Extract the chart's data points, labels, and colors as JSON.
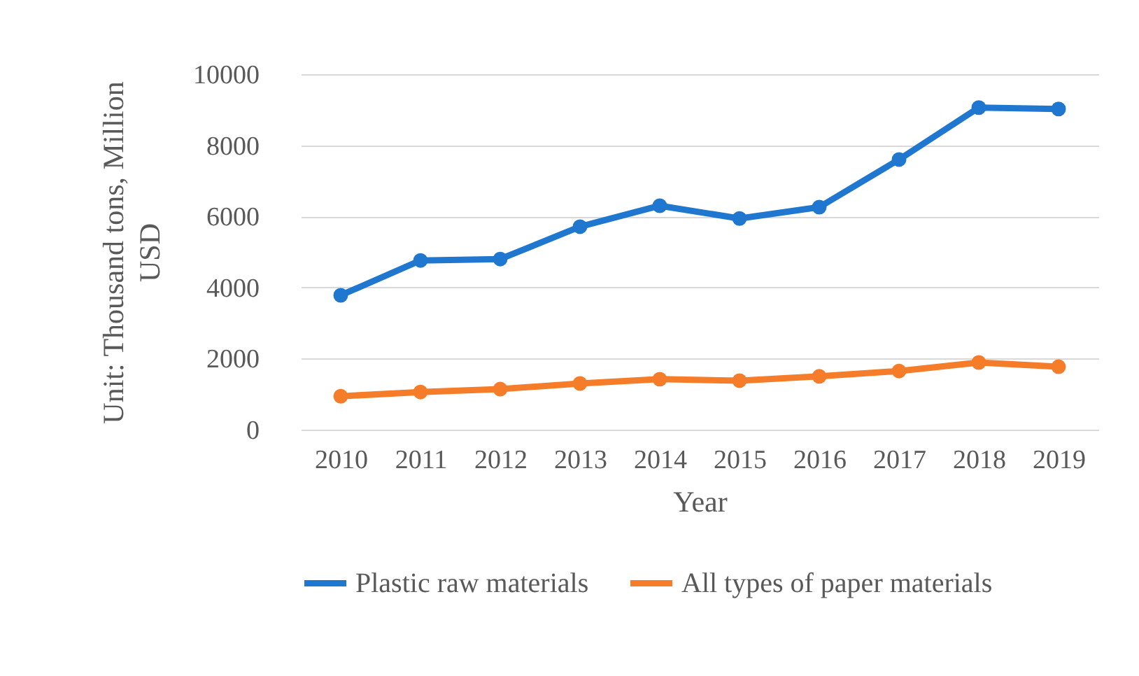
{
  "chart_data": {
    "type": "line",
    "xlabel": "Year",
    "ylabel": "Unit: Thousand tons, Million USD",
    "categories": [
      "2010",
      "2011",
      "2012",
      "2013",
      "2014",
      "2015",
      "2016",
      "2017",
      "2018",
      "2019"
    ],
    "series": [
      {
        "name": "Plastic raw materials",
        "color": "#1f77d0",
        "values": [
          3780,
          4760,
          4800,
          5710,
          6300,
          5940,
          6260,
          7600,
          9060,
          9020
        ]
      },
      {
        "name": "All types of paper materials",
        "color": "#f57d2a",
        "values": [
          940,
          1060,
          1140,
          1300,
          1420,
          1380,
          1500,
          1650,
          1890,
          1770
        ]
      }
    ],
    "ylim": [
      0,
      10000
    ],
    "yticks": [
      0,
      2000,
      4000,
      6000,
      8000,
      10000
    ],
    "grid": "y",
    "legend": "bottom",
    "marker": "circle",
    "line_style": "solid"
  }
}
